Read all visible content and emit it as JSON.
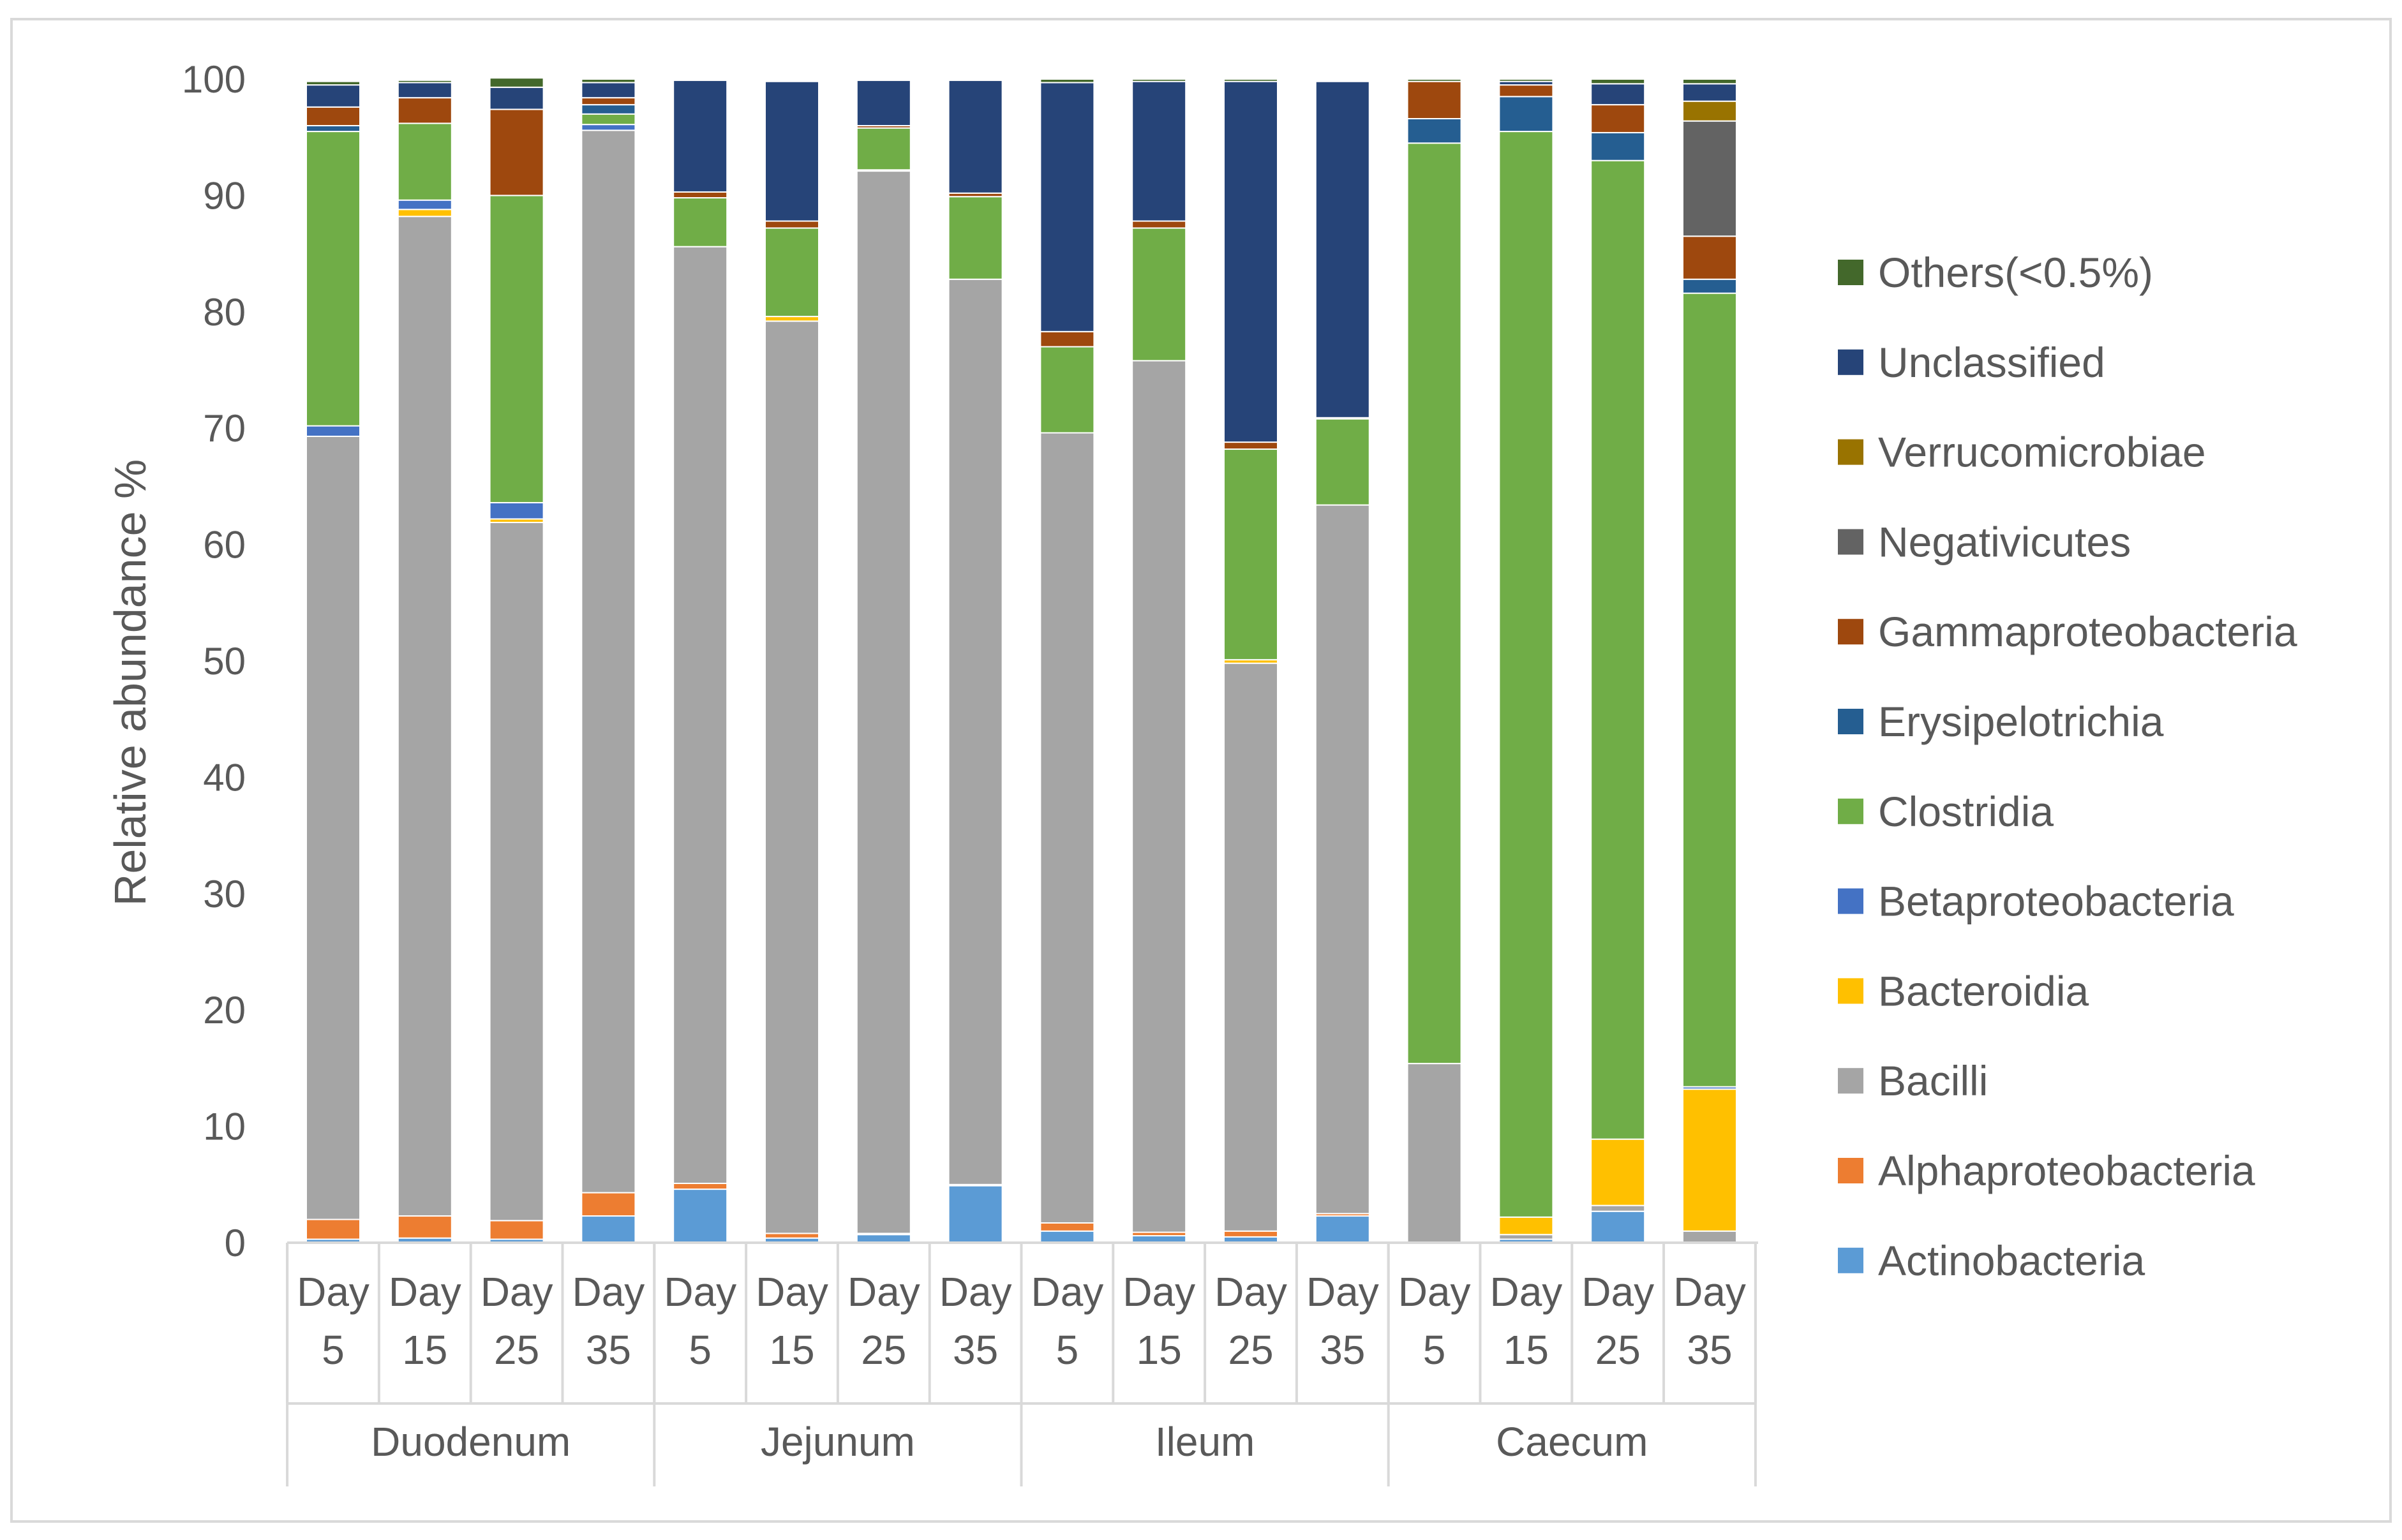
{
  "chart_data": {
    "type": "bar",
    "stacked": true,
    "ylabel": "Relative abundance %",
    "ylim": [
      0,
      100
    ],
    "yticks": [
      0,
      10,
      20,
      30,
      40,
      50,
      60,
      70,
      80,
      90,
      100
    ],
    "grid": false,
    "legend_position": "right",
    "groups": [
      {
        "name": "Duodenum",
        "days": [
          [
            "Day",
            "5"
          ],
          [
            "Day",
            "15"
          ],
          [
            "Day",
            "25"
          ],
          [
            "Day",
            "35"
          ]
        ]
      },
      {
        "name": "Jejunum",
        "days": [
          [
            "Day",
            "5"
          ],
          [
            "Day",
            "15"
          ],
          [
            "Day",
            "25"
          ],
          [
            "Day",
            "35"
          ]
        ]
      },
      {
        "name": "Ileum",
        "days": [
          [
            "Day",
            "5"
          ],
          [
            "Day",
            "15"
          ],
          [
            "Day",
            "25"
          ],
          [
            "Day",
            "35"
          ]
        ]
      },
      {
        "name": "Caecum",
        "days": [
          [
            "Day",
            "5"
          ],
          [
            "Day",
            "15"
          ],
          [
            "Day",
            "25"
          ],
          [
            "Day",
            "35"
          ]
        ]
      }
    ],
    "series": [
      {
        "name": "Actinobacteria",
        "color": "#5B9BD5",
        "values": [
          0.3,
          0.4,
          0.3,
          2.3,
          4.6,
          0.4,
          0.7,
          4.9,
          1.0,
          0.6,
          0.5,
          2.3,
          0.0,
          0.3,
          2.7,
          0.0
        ]
      },
      {
        "name": "Alphaproteobacteria",
        "color": "#ED7D31",
        "values": [
          1.7,
          1.9,
          1.6,
          2.0,
          0.5,
          0.4,
          0.1,
          0.1,
          0.7,
          0.3,
          0.5,
          0.2,
          0.0,
          0.0,
          0.0,
          0.0
        ]
      },
      {
        "name": "Bacilli",
        "color": "#A5A5A5",
        "values": [
          67.3,
          85.9,
          60.0,
          91.3,
          80.5,
          78.4,
          91.3,
          77.8,
          67.9,
          74.9,
          48.8,
          60.9,
          15.4,
          0.4,
          0.5,
          1.0
        ]
      },
      {
        "name": "Bacteroidia",
        "color": "#FFC000",
        "values": [
          0.0,
          0.6,
          0.3,
          0.0,
          0.0,
          0.4,
          0.1,
          0.0,
          0.0,
          0.0,
          0.3,
          0.0,
          0.0,
          1.5,
          5.7,
          12.2
        ]
      },
      {
        "name": "Betaproteobacteria",
        "color": "#4472C4",
        "values": [
          0.9,
          0.8,
          1.4,
          0.5,
          0.0,
          0.0,
          0.0,
          0.0,
          0.0,
          0.0,
          0.0,
          0.0,
          0.0,
          0.0,
          0.0,
          0.2
        ]
      },
      {
        "name": "Clostridia",
        "color": "#70AD47",
        "values": [
          25.3,
          6.6,
          26.4,
          0.9,
          4.2,
          7.6,
          3.6,
          7.1,
          7.4,
          11.4,
          18.1,
          7.4,
          79.1,
          93.3,
          84.1,
          68.2
        ]
      },
      {
        "name": "Erysipelotrichia",
        "color": "#255E91",
        "values": [
          0.5,
          0.0,
          0.0,
          0.8,
          0.0,
          0.0,
          0.0,
          0.0,
          0.0,
          0.0,
          0.0,
          0.0,
          2.1,
          3.0,
          2.4,
          1.2
        ]
      },
      {
        "name": "Gammaproteobacteria",
        "color": "#9E480E",
        "values": [
          1.6,
          2.2,
          7.4,
          0.6,
          0.5,
          0.6,
          0.2,
          0.3,
          1.3,
          0.6,
          0.6,
          0.1,
          3.2,
          1.0,
          2.4,
          3.7
        ]
      },
      {
        "name": "Negativicutes",
        "color": "#636363",
        "values": [
          0.0,
          0.0,
          0.0,
          0.0,
          0.0,
          0.0,
          0.0,
          0.0,
          0.0,
          0.0,
          0.0,
          0.0,
          0.0,
          0.0,
          0.0,
          9.9
        ]
      },
      {
        "name": "Verrucomicrobiae",
        "color": "#997300",
        "values": [
          0.0,
          0.0,
          0.0,
          0.0,
          0.0,
          0.0,
          0.0,
          0.0,
          0.0,
          0.0,
          0.0,
          0.0,
          0.0,
          0.0,
          0.0,
          1.7
        ]
      },
      {
        "name": "Unclassified",
        "color": "#264478",
        "values": [
          1.9,
          1.3,
          1.9,
          1.3,
          9.6,
          12.0,
          3.9,
          9.7,
          21.4,
          12.0,
          31.0,
          28.9,
          0.0,
          0.3,
          1.8,
          1.5
        ]
      },
      {
        "name": "Others(<0.5%)",
        "color": "#43682B",
        "values": [
          0.3,
          0.2,
          0.8,
          0.3,
          0.1,
          0.1,
          0.1,
          0.1,
          0.3,
          0.2,
          0.2,
          0.1,
          0.2,
          0.2,
          0.4,
          0.4
        ]
      }
    ]
  }
}
